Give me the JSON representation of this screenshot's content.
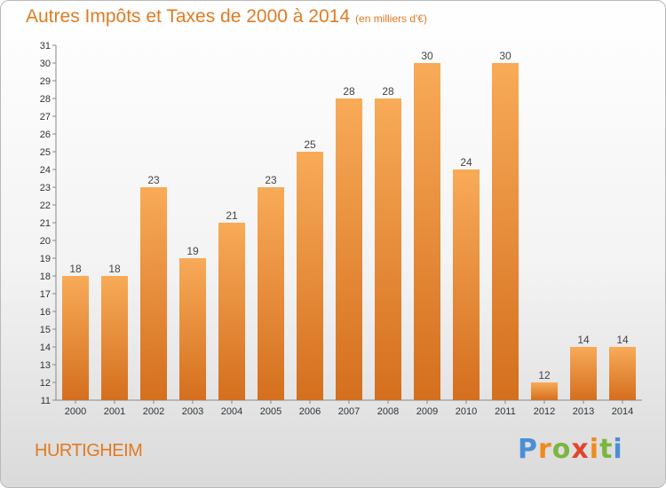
{
  "header": {
    "title": "Autres Impôts et Taxes de 2000 à 2014",
    "subtitle": "(en milliers d'€)"
  },
  "footer": {
    "place": "HURTIGHEIM",
    "logo": "Proxiti"
  },
  "colors": {
    "accent": "#e07b23",
    "bar_light": "#f7a955",
    "bar_dark": "#d9711d"
  },
  "chart_data": {
    "type": "bar",
    "categories": [
      "2000",
      "2001",
      "2002",
      "2003",
      "2004",
      "2005",
      "2006",
      "2007",
      "2008",
      "2009",
      "2010",
      "2011",
      "2012",
      "2013",
      "2014"
    ],
    "values": [
      18,
      18,
      23,
      19,
      21,
      23,
      25,
      28,
      28,
      30,
      24,
      30,
      12,
      14,
      14
    ],
    "ylim": [
      11,
      31
    ],
    "yticks": [
      11,
      12,
      13,
      14,
      15,
      16,
      17,
      18,
      19,
      20,
      21,
      22,
      23,
      24,
      25,
      26,
      27,
      28,
      29,
      30,
      31
    ],
    "grid": false,
    "legend": "none"
  }
}
